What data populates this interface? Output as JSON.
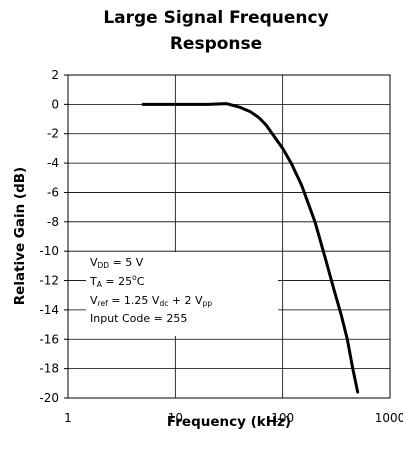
{
  "chart_data": {
    "type": "line",
    "title_line1": "Large Signal Frequency",
    "title_line2": "Response",
    "xlabel": "Frequency (kHz)",
    "ylabel": "Relative Gain (dB)",
    "x_scale": "log",
    "xlim": [
      1,
      1000
    ],
    "ylim": [
      -20,
      2
    ],
    "x_ticks": [
      "1",
      "10",
      "100",
      "1000"
    ],
    "y_ticks": [
      "2",
      "0",
      "-2",
      "-4",
      "-6",
      "-8",
      "-10",
      "-12",
      "-14",
      "-16",
      "-18",
      "-20"
    ],
    "grid": true,
    "series": [
      {
        "x": [
          5,
          10,
          20,
          30,
          40,
          50,
          60,
          70,
          80,
          100,
          120,
          150,
          200,
          250,
          300,
          350,
          400,
          450,
          500
        ],
        "y": [
          0,
          0,
          0,
          0.05,
          -0.2,
          -0.5,
          -0.9,
          -1.4,
          -2.0,
          -3.0,
          -4.0,
          -5.5,
          -8.0,
          -10.5,
          -12.6,
          -14.3,
          -16.0,
          -18.0,
          -19.6
        ]
      }
    ],
    "annotation": {
      "vdd_sym": "V",
      "vdd_sub": "DD",
      "vdd_val": " = 5 V",
      "ta_sym": "T",
      "ta_sub": "A",
      "ta_val": " = 25",
      "ta_deg": "o",
      "ta_unit": "C",
      "vref_sym": "V",
      "vref_sub": "ref",
      "vref_mid": " = 1.25 V",
      "vref_sub2": "dc",
      "vref_plus": " + 2 V",
      "vref_sub3": "pp",
      "code": "Input Code = 255"
    },
    "line_color": "#000000"
  }
}
